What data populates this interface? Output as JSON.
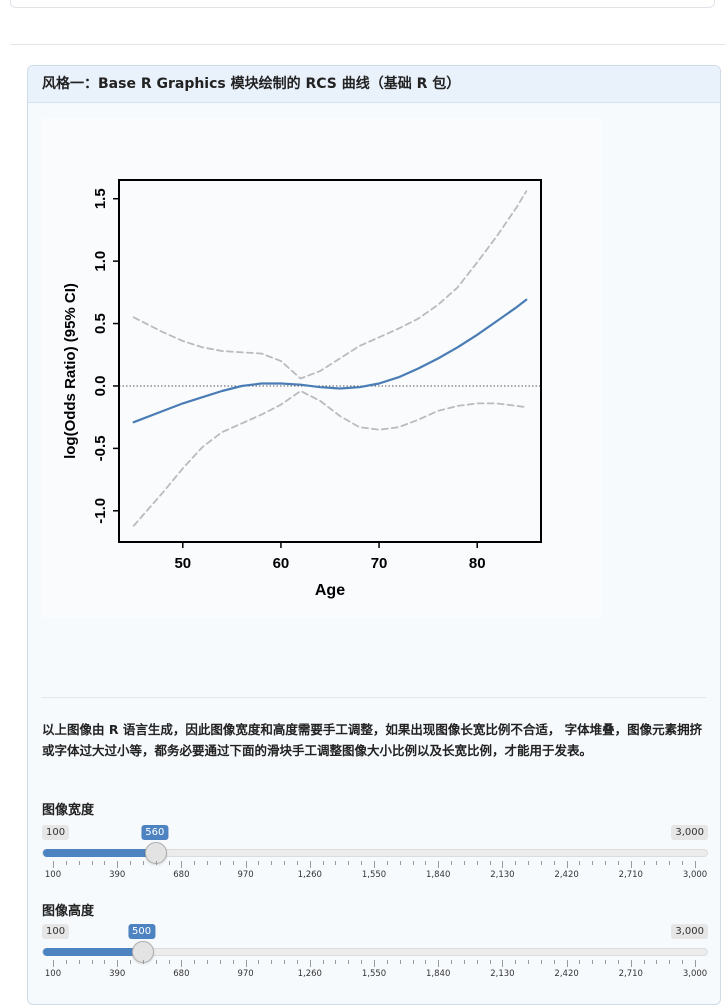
{
  "panel": {
    "title": "风格一：Base R Graphics 模块绘制的 RCS 曲线（基础 R 包）"
  },
  "chart_data": {
    "type": "line",
    "xlabel": "Age",
    "ylabel": "log(Odds Ratio) (95% CI)",
    "xlim": [
      43.5,
      86.5
    ],
    "ylim": [
      -1.25,
      1.65
    ],
    "xticks": [
      "50",
      "60",
      "70",
      "80"
    ],
    "yticks": [
      "-1.0",
      "-0.5",
      "0.0",
      "0.5",
      "1.0",
      "1.5"
    ],
    "reference_line_y": 0,
    "series": [
      {
        "role": "estimate",
        "color": "#4a7db5",
        "x": [
          45,
          48,
          50,
          52,
          54,
          56,
          58,
          60,
          62,
          64,
          66,
          68,
          70,
          72,
          74,
          76,
          78,
          80,
          82,
          84,
          85
        ],
        "y": [
          -0.29,
          -0.2,
          -0.14,
          -0.09,
          -0.04,
          0.0,
          0.02,
          0.02,
          0.01,
          -0.01,
          -0.02,
          -0.01,
          0.02,
          0.07,
          0.14,
          0.22,
          0.31,
          0.41,
          0.52,
          0.63,
          0.69
        ]
      },
      {
        "role": "upper",
        "color": "#bbbbbb",
        "x": [
          45,
          48,
          50,
          52,
          54,
          56,
          58,
          60,
          62,
          64,
          66,
          68,
          70,
          72,
          74,
          76,
          78,
          80,
          82,
          84,
          85
        ],
        "y": [
          0.55,
          0.43,
          0.36,
          0.31,
          0.28,
          0.27,
          0.26,
          0.2,
          0.06,
          0.12,
          0.22,
          0.32,
          0.39,
          0.46,
          0.54,
          0.65,
          0.79,
          0.99,
          1.2,
          1.43,
          1.56
        ]
      },
      {
        "role": "lower",
        "color": "#bbbbbb",
        "x": [
          45,
          48,
          50,
          52,
          54,
          56,
          58,
          60,
          62,
          64,
          66,
          68,
          70,
          72,
          74,
          76,
          78,
          80,
          82,
          84,
          85
        ],
        "y": [
          -1.12,
          -0.85,
          -0.66,
          -0.49,
          -0.37,
          -0.3,
          -0.23,
          -0.15,
          -0.04,
          -0.12,
          -0.24,
          -0.33,
          -0.35,
          -0.33,
          -0.27,
          -0.2,
          -0.16,
          -0.14,
          -0.14,
          -0.16,
          -0.17
        ]
      }
    ]
  },
  "note": "以上图像由 R 语言生成，因此图像宽度和高度需要手工调整，如果出现图像长宽比例不合适， 字体堆叠，图像元素拥挤或字体过大过小等，都务必要通过下面的滑块手工调整图像大小比例以及长宽比例，才能用于发表。",
  "sliders": [
    {
      "label": "图像宽度",
      "min": 100,
      "max": 3000,
      "value": 560,
      "min_label": "100",
      "max_label": "3,000",
      "value_label": "560",
      "tick_labels": [
        "100",
        "390",
        "680",
        "970",
        "1,260",
        "1,550",
        "1,840",
        "2,130",
        "2,420",
        "2,710",
        "3,000"
      ]
    },
    {
      "label": "图像高度",
      "min": 100,
      "max": 3000,
      "value": 500,
      "min_label": "100",
      "max_label": "3,000",
      "value_label": "500",
      "tick_labels": [
        "100",
        "390",
        "680",
        "970",
        "1,260",
        "1,550",
        "1,840",
        "2,130",
        "2,420",
        "2,710",
        "3,000"
      ]
    }
  ],
  "colors": {
    "accent": "#4e83c2",
    "panel_header_bg": "#e9f1fb"
  }
}
